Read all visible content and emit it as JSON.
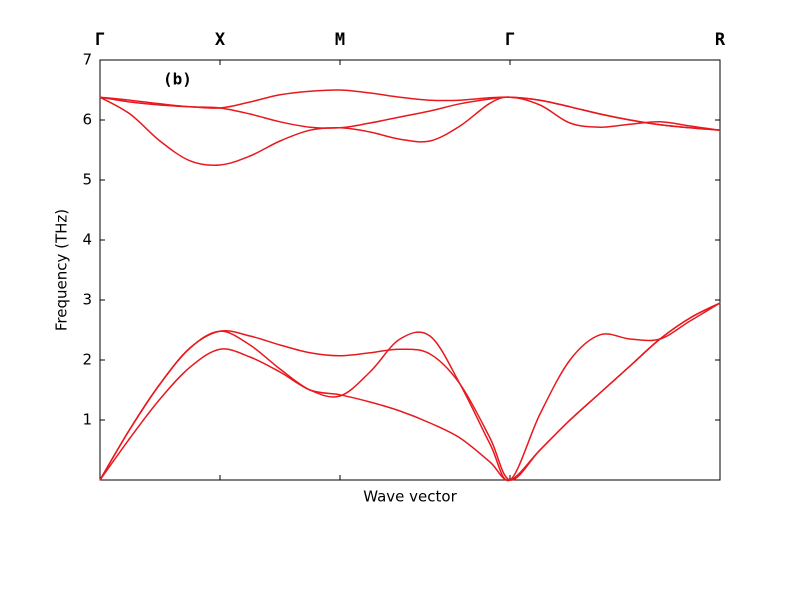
{
  "chart_data": {
    "type": "line",
    "annotation": "(b)",
    "x_label": "Wave vector",
    "y_label": "Frequency (THz)",
    "x": [
      0,
      0.3,
      0.6,
      0.9,
      1.2,
      1.5,
      1.8,
      2.1,
      2.4,
      2.7,
      3.0,
      3.3,
      3.6,
      3.9,
      4.1,
      4.4,
      4.7,
      5.0,
      5.3,
      5.6,
      5.9,
      6.2
    ],
    "xlim": [
      0,
      6.2
    ],
    "xticks": [
      {
        "value": 0,
        "label": "Γ"
      },
      {
        "value": 1.2,
        "label": "X"
      },
      {
        "value": 2.4,
        "label": "M"
      },
      {
        "value": 4.1,
        "label": "Γ"
      },
      {
        "value": 6.2,
        "label": "R"
      }
    ],
    "ylim": [
      0,
      7
    ],
    "yticks": [
      1,
      2,
      3,
      4,
      5,
      6,
      7
    ],
    "series": [
      {
        "color": "#e8191e",
        "values": [
          0,
          0.7,
          1.35,
          1.88,
          2.18,
          2.05,
          1.8,
          1.5,
          1.42,
          1.3,
          1.15,
          0.95,
          0.7,
          0.3,
          0,
          0.5,
          1.0,
          1.45,
          1.9,
          2.35,
          2.7,
          2.95
        ]
      },
      {
        "color": "#e8191e",
        "values": [
          0,
          0.85,
          1.6,
          2.2,
          2.48,
          2.25,
          1.85,
          1.5,
          1.4,
          1.8,
          2.35,
          2.4,
          1.6,
          0.6,
          0,
          1.1,
          2.0,
          2.42,
          2.35,
          2.35,
          2.65,
          2.95
        ]
      },
      {
        "color": "#e8191e",
        "values": [
          0,
          0.85,
          1.6,
          2.2,
          2.48,
          2.4,
          2.25,
          2.12,
          2.07,
          2.12,
          2.18,
          2.1,
          1.6,
          0.7,
          0,
          0.5,
          1.0,
          1.45,
          1.9,
          2.35,
          2.7,
          2.95
        ]
      },
      {
        "color": "#e8191e",
        "values": [
          6.38,
          6.1,
          5.65,
          5.32,
          5.25,
          5.4,
          5.65,
          5.83,
          5.87,
          5.8,
          5.68,
          5.65,
          5.9,
          6.28,
          6.38,
          6.25,
          5.95,
          5.88,
          5.93,
          5.97,
          5.9,
          5.83
        ]
      },
      {
        "color": "#e8191e",
        "values": [
          6.38,
          6.33,
          6.27,
          6.22,
          6.2,
          6.1,
          5.97,
          5.88,
          5.87,
          5.95,
          6.05,
          6.15,
          6.27,
          6.35,
          6.38,
          6.33,
          6.22,
          6.1,
          6.0,
          5.92,
          5.87,
          5.83
        ]
      },
      {
        "color": "#e8191e",
        "values": [
          6.38,
          6.3,
          6.25,
          6.22,
          6.2,
          6.3,
          6.42,
          6.48,
          6.5,
          6.45,
          6.38,
          6.33,
          6.33,
          6.37,
          6.38,
          6.33,
          6.22,
          6.1,
          6.0,
          5.92,
          5.87,
          5.83
        ]
      }
    ]
  }
}
